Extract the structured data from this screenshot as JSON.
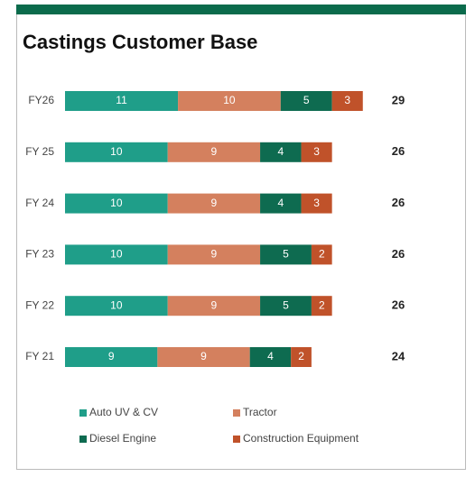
{
  "chart_data": {
    "type": "stacked_bar_horizontal",
    "title": "Castings Customer Base",
    "categories": [
      "FY26",
      "FY 25",
      "FY 24",
      "FY 23",
      "FY 22",
      "FY 21"
    ],
    "series": [
      {
        "name": "Auto UV & CV",
        "color": "#1f9e89",
        "values": [
          11,
          10,
          10,
          10,
          10,
          9
        ]
      },
      {
        "name": "Tractor",
        "color": "#d4805e",
        "values": [
          10,
          9,
          9,
          9,
          9,
          9
        ]
      },
      {
        "name": "Diesel Engine",
        "color": "#0e6b50",
        "values": [
          5,
          4,
          4,
          5,
          5,
          4
        ]
      },
      {
        "name": "Construction Equipment",
        "color": "#c0522a",
        "values": [
          3,
          3,
          3,
          2,
          2,
          2
        ]
      }
    ],
    "totals": [
      29,
      26,
      26,
      26,
      26,
      24
    ],
    "xlim": [
      0,
      35
    ]
  }
}
